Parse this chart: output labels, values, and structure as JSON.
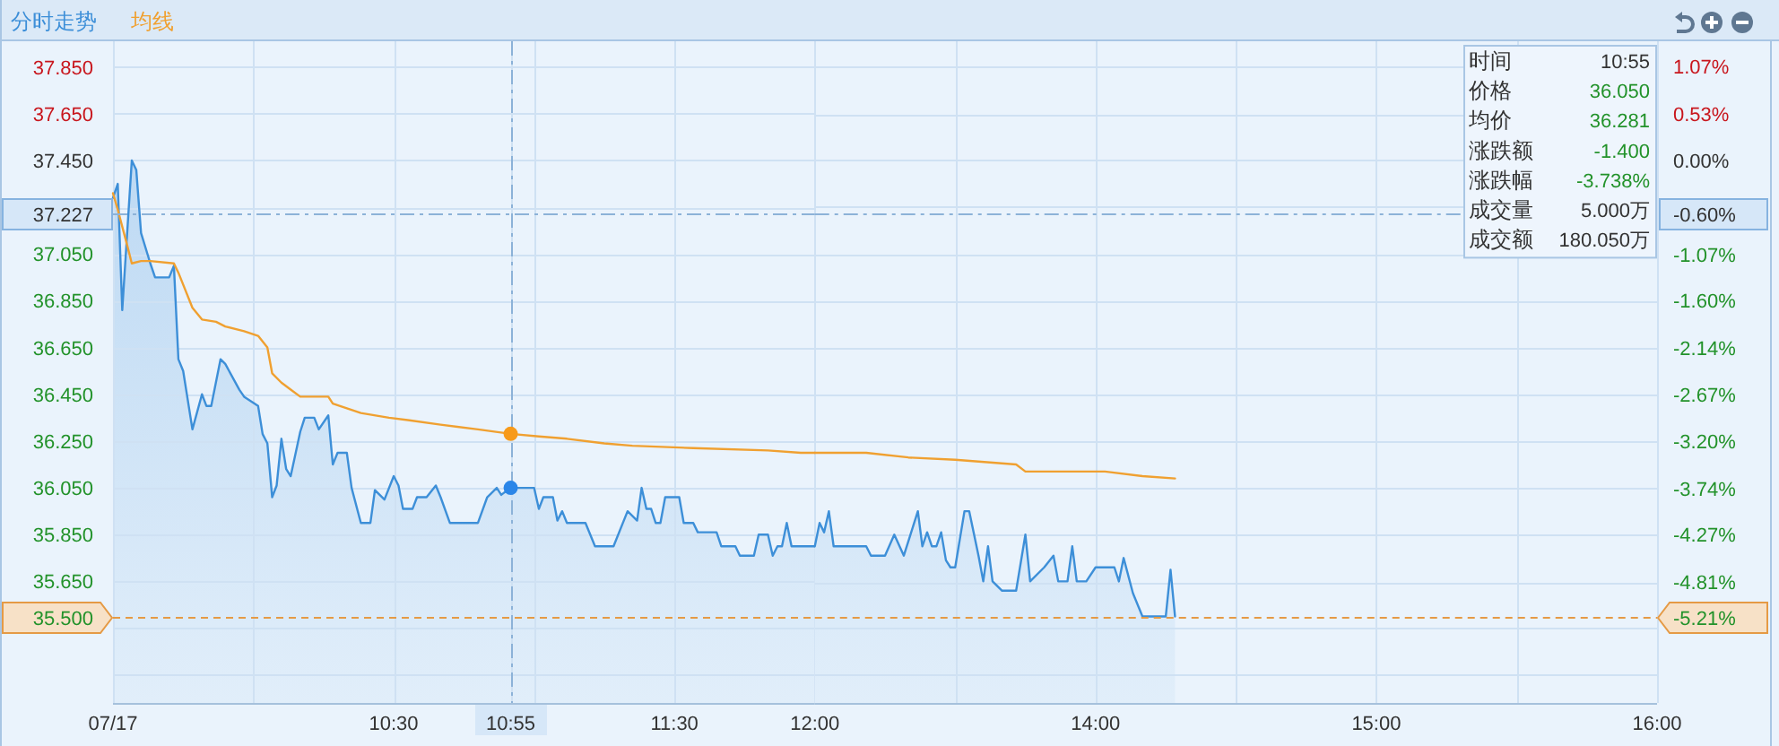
{
  "chart_data": [
    {
      "type": "line",
      "legend": "top left",
      "grid": true,
      "series": [
        {
          "name": "分时走势",
          "type": "area",
          "color": "#3d8fd8",
          "x": [
            9.5,
            9.517,
            9.533,
            9.567,
            9.583,
            9.6,
            9.633,
            9.65,
            9.7,
            9.717,
            9.733,
            9.75,
            9.783,
            9.817,
            9.833,
            9.85,
            9.883,
            9.9,
            9.95,
            9.967,
            10.017,
            10.033,
            10.05,
            10.067,
            10.083,
            10.1,
            10.117,
            10.133,
            10.167,
            10.183,
            10.217,
            10.233,
            10.267,
            10.283,
            10.3,
            10.333,
            10.35,
            10.383,
            10.417,
            10.433,
            10.467,
            10.5,
            10.517,
            10.533,
            10.567,
            10.583,
            10.617,
            10.65,
            10.667,
            10.7,
            10.8,
            10.833,
            10.867,
            10.883,
            10.916666666666666,
            11,
            11.017,
            11.033,
            11.067,
            11.083,
            11.1,
            11.117,
            11.183,
            11.217,
            11.283,
            11.333,
            11.367,
            11.383,
            11.4,
            11.417,
            11.433,
            11.45,
            11.467,
            11.517,
            11.533,
            11.567,
            11.583,
            11.65,
            11.667,
            11.717,
            11.733,
            11.783,
            11.8,
            11.833,
            11.85,
            11.867,
            11.883,
            11.9,
            11.917,
            12
          ],
          "values": [
            37.29,
            37.35,
            36.81,
            37.45,
            37.41,
            37.14,
            37.01,
            36.95,
            36.95,
            37.0,
            36.6,
            36.55,
            36.3,
            36.45,
            36.4,
            36.4,
            36.6,
            36.58,
            36.47,
            36.44,
            36.4,
            36.28,
            36.24,
            36.01,
            36.06,
            36.26,
            36.13,
            36.1,
            36.29,
            36.35,
            36.35,
            36.3,
            36.36,
            36.15,
            36.2,
            36.2,
            36.05,
            35.9,
            35.9,
            36.04,
            36.0,
            36.1,
            36.06,
            35.96,
            35.96,
            36.01,
            36.01,
            36.06,
            36.01,
            35.9,
            35.9,
            36.01,
            36.05,
            36.02,
            36.05,
            36.05,
            35.96,
            36.01,
            36.01,
            35.91,
            35.95,
            35.9,
            35.9,
            35.8,
            35.8,
            35.95,
            35.91,
            36.05,
            35.96,
            35.96,
            35.9,
            35.9,
            36.01,
            36.01,
            35.9,
            35.9,
            35.86,
            35.86,
            35.8,
            35.8,
            35.76,
            35.76,
            35.85,
            35.85,
            35.76,
            35.8,
            35.8,
            35.9,
            35.8,
            35.8
          ]
        },
        {
          "name": "均线",
          "color": "#f0a030",
          "x": [
            9.5,
            9.517,
            9.55,
            9.567,
            9.6,
            9.633,
            9.717,
            9.733,
            9.783,
            9.817,
            9.867,
            9.9,
            9.967,
            10.017,
            10.05,
            10.067,
            10.1,
            10.133,
            10.167,
            10.267,
            10.283,
            10.333,
            10.383,
            10.483,
            10.55,
            10.667,
            10.8,
            10.916666666666666,
            11.017,
            11.117,
            11.25,
            11.35,
            11.567,
            11.833,
            11.95,
            12
          ],
          "values": [
            37.31,
            37.24,
            37.09,
            37.01,
            37.02,
            37.02,
            37.01,
            36.97,
            36.82,
            36.77,
            36.76,
            36.74,
            36.72,
            36.7,
            36.65,
            36.54,
            36.5,
            36.47,
            36.44,
            36.44,
            36.41,
            36.39,
            36.37,
            36.35,
            36.34,
            36.32,
            36.3,
            36.281,
            36.27,
            36.26,
            36.24,
            36.23,
            36.22,
            36.21,
            36.2,
            36.2
          ]
        },
        {
          "type": "scatter",
          "color": "#2b86e8",
          "marker": "circle",
          "x": [
            10.916666666666666
          ],
          "values": [
            36.05
          ]
        },
        {
          "type": "scatter",
          "color": "#f79a1a",
          "marker": "circle",
          "x": [
            10.916666666666666
          ],
          "values": [
            36.281
          ]
        }
      ],
      "xlim": [
        9.5,
        12
      ],
      "xticks": [
        {
          "value": 9.5,
          "label": "07/17"
        },
        {
          "value": 10,
          "label": null
        },
        {
          "value": 10.5,
          "label": "10:30"
        },
        {
          "value": 10.916666666666666,
          "label": "10:55"
        },
        {
          "value": 11,
          "label": null
        },
        {
          "value": 11.5,
          "label": "11:30"
        },
        {
          "value": 12,
          "label": "12:00"
        }
      ],
      "ylim": [
        35.13,
        37.96
      ],
      "yticks": [
        {
          "value": 35.25,
          "label": null
        },
        {
          "value": 35.45,
          "label": null
        },
        {
          "value": 35.65,
          "label": "35.650"
        },
        {
          "value": 35.85,
          "label": "35.850"
        },
        {
          "value": 36.05,
          "label": "36.050"
        },
        {
          "value": 36.25,
          "label": "36.250"
        },
        {
          "value": 36.45,
          "label": "36.450"
        },
        {
          "value": 36.65,
          "label": "36.650"
        },
        {
          "value": 36.85,
          "label": "36.850"
        },
        {
          "value": 37.05,
          "label": "37.050"
        },
        {
          "value": 37.25,
          "label": null
        },
        {
          "value": 37.45,
          "label": "37.450"
        },
        {
          "value": 37.65,
          "label": "37.650"
        },
        {
          "value": 37.85,
          "label": "37.850"
        }
      ],
      "ref_lines": [
        {
          "axis": "x",
          "value": 10.916666666666666,
          "line_style": "dashed"
        },
        {
          "axis": "y",
          "value": 37.227,
          "label": "37.227",
          "line_style": "dashed"
        },
        {
          "axis": "y",
          "value": 35.5,
          "label": "35.500",
          "color": "#e59a45",
          "line_style": "dashed"
        }
      ]
    },
    {
      "type": "line",
      "grid": true,
      "series": [
        {
          "type": "area",
          "color": "#3d8fd8",
          "x": [
            13,
            13.017,
            13.033,
            13.05,
            13.067,
            13.183,
            13.2,
            13.25,
            13.283,
            13.317,
            13.367,
            13.383,
            13.4,
            13.417,
            13.433,
            13.45,
            13.467,
            13.483,
            13.5,
            13.533,
            13.55,
            13.583,
            13.6,
            13.617,
            13.633,
            13.667,
            13.717,
            13.75,
            13.767,
            13.817,
            13.85,
            13.867,
            13.9,
            13.917,
            13.933,
            13.967,
            14,
            14.067,
            14.083,
            14.1,
            14.133,
            14.167,
            14.25,
            14.267,
            14.283
          ],
          "values": [
            35.8,
            35.9,
            35.86,
            35.95,
            35.8,
            35.8,
            35.76,
            35.76,
            35.85,
            35.76,
            35.95,
            35.8,
            35.86,
            35.8,
            35.8,
            35.86,
            35.74,
            35.71,
            35.71,
            35.95,
            35.95,
            35.76,
            35.65,
            35.8,
            35.65,
            35.61,
            35.61,
            35.85,
            35.65,
            35.71,
            35.76,
            35.65,
            35.65,
            35.8,
            35.65,
            35.65,
            35.71,
            35.71,
            35.65,
            35.75,
            35.6,
            35.5,
            35.5,
            35.7,
            35.5
          ]
        },
        {
          "color": "#f0a030",
          "x": [
            13,
            13.183,
            13.333,
            13.5,
            13.717,
            13.75,
            14.033,
            14.167,
            14.283
          ],
          "values": [
            36.2,
            36.2,
            36.18,
            36.17,
            36.15,
            36.12,
            36.12,
            36.1,
            36.09
          ]
        }
      ],
      "xlim": [
        13,
        16
      ],
      "xticks": [
        {
          "value": 13.5,
          "label": null
        },
        {
          "value": 14,
          "label": "14:00"
        },
        {
          "value": 14.5,
          "label": null
        },
        {
          "value": 15,
          "label": "15:00"
        },
        {
          "value": 15.5,
          "label": null
        },
        {
          "value": 16,
          "label": "16:00"
        }
      ],
      "ylim": [
        35.13,
        37.96
      ],
      "y2lim": [
        -6.19,
        1.36
      ],
      "y2ticks": [
        {
          "value": -5.87,
          "label": null
        },
        {
          "value": -5.34,
          "label": null
        },
        {
          "value": -4.81,
          "label": "-4.81%"
        },
        {
          "value": -4.27,
          "label": "-4.27%"
        },
        {
          "value": -3.74,
          "label": "-3.74%"
        },
        {
          "value": -3.2,
          "label": "-3.20%"
        },
        {
          "value": -2.67,
          "label": "-2.67%"
        },
        {
          "value": -2.14,
          "label": "-2.14%"
        },
        {
          "value": -1.6,
          "label": "-1.60%"
        },
        {
          "value": -1.07,
          "label": "-1.07%"
        },
        {
          "value": -0.53,
          "label": null
        },
        {
          "value": 0,
          "label": "0.00%"
        },
        {
          "value": 0.53,
          "label": "0.53%"
        },
        {
          "value": 1.07,
          "label": "1.07%"
        }
      ],
      "ref_lines": [
        {
          "axis": "y2",
          "value": -0.6,
          "label": "-0.60%",
          "line_style": "dashed"
        },
        {
          "axis": "y2",
          "value": -5.21,
          "label": "-5.21%",
          "color": "#e59a45",
          "line_style": "dashed"
        }
      ],
      "annotations": [
        "时间",
        "10:55",
        "价格",
        "36.050",
        "均价",
        "36.281",
        "涨跌额",
        "-1.400",
        "涨跌幅",
        "-3.738%",
        "成交量",
        "5.000万",
        "成交额",
        "180.050万"
      ]
    }
  ]
}
